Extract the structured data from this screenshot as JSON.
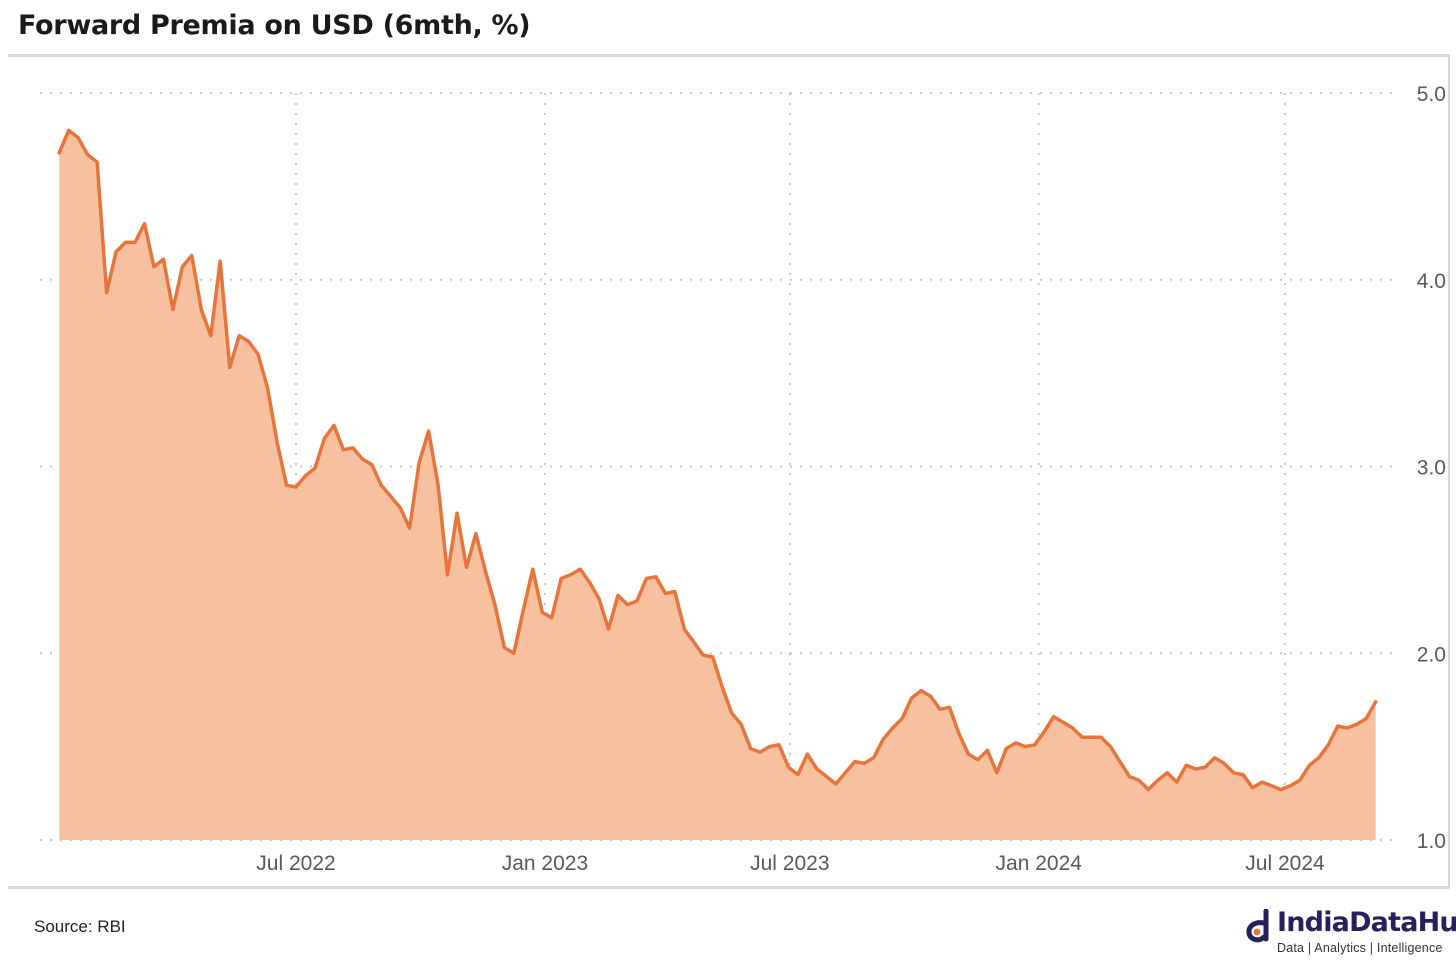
{
  "title": "Forward Premia on USD (6mth, %)",
  "source": "Source: RBI",
  "brand": {
    "name": "IndiaDataHub",
    "tagline": "Data | Analytics | Intelligence"
  },
  "colors": {
    "line": "#e8743b",
    "fill": "#f7c1a0",
    "grid": "#c8c8c8",
    "axis_text": "#595959",
    "brand": "#26215c"
  },
  "chart_data": {
    "type": "area",
    "title": "Forward Premia on USD (6mth, %)",
    "xlabel": "",
    "ylabel": "",
    "ylim": [
      1.0,
      5.0
    ],
    "yticks": [
      1.0,
      2.0,
      3.0,
      4.0,
      5.0
    ],
    "ytick_labels": [
      "1.0",
      "2.0",
      "3.0",
      "4.0",
      "5.0"
    ],
    "y_axis_side": "right",
    "xtick_labels": [
      {
        "label": "Jul 2022",
        "date": "2022-07-01"
      },
      {
        "label": "Jan 2023",
        "date": "2023-01-01"
      },
      {
        "label": "Jul 2023",
        "date": "2023-07-01"
      },
      {
        "label": "Jan 2024",
        "date": "2024-01-01"
      },
      {
        "label": "Jul 2024",
        "date": "2024-07-01"
      }
    ],
    "grid": "dotted",
    "legend": "none",
    "series": [
      {
        "x": [
          "2022-01-07",
          "2022-01-14",
          "2022-01-21",
          "2022-01-28",
          "2022-02-04",
          "2022-02-11",
          "2022-02-18",
          "2022-02-25",
          "2022-03-04",
          "2022-03-11",
          "2022-03-18",
          "2022-03-25",
          "2022-04-01",
          "2022-04-08",
          "2022-04-15",
          "2022-04-22",
          "2022-04-29",
          "2022-05-06",
          "2022-05-13",
          "2022-05-20",
          "2022-05-27",
          "2022-06-03",
          "2022-06-10",
          "2022-06-17",
          "2022-06-24",
          "2022-07-01",
          "2022-07-08",
          "2022-07-15",
          "2022-07-22",
          "2022-07-29",
          "2022-08-05",
          "2022-08-12",
          "2022-08-19",
          "2022-08-26",
          "2022-09-02",
          "2022-09-09",
          "2022-09-16",
          "2022-09-23",
          "2022-09-30",
          "2022-10-07",
          "2022-10-14",
          "2022-10-21",
          "2022-10-28",
          "2022-11-04",
          "2022-11-11",
          "2022-11-18",
          "2022-11-25",
          "2022-12-02",
          "2022-12-09",
          "2022-12-16",
          "2022-12-23",
          "2022-12-30",
          "2023-01-06",
          "2023-01-13",
          "2023-01-20",
          "2023-01-27",
          "2023-02-03",
          "2023-02-10",
          "2023-02-17",
          "2023-02-24",
          "2023-03-03",
          "2023-03-10",
          "2023-03-17",
          "2023-03-24",
          "2023-03-31",
          "2023-04-07",
          "2023-04-14",
          "2023-04-21",
          "2023-04-28",
          "2023-05-05",
          "2023-05-12",
          "2023-05-19",
          "2023-05-26",
          "2023-06-02",
          "2023-06-09",
          "2023-06-16",
          "2023-06-23",
          "2023-06-30",
          "2023-07-07",
          "2023-07-14",
          "2023-07-21",
          "2023-07-28",
          "2023-08-04",
          "2023-08-11",
          "2023-08-18",
          "2023-08-25",
          "2023-09-01",
          "2023-09-08",
          "2023-09-15",
          "2023-09-22",
          "2023-09-29",
          "2023-10-06",
          "2023-10-13",
          "2023-10-20",
          "2023-10-27",
          "2023-11-03",
          "2023-11-10",
          "2023-11-17",
          "2023-11-24",
          "2023-12-01",
          "2023-12-08",
          "2023-12-15",
          "2023-12-22",
          "2023-12-29",
          "2024-01-05",
          "2024-01-12",
          "2024-01-19",
          "2024-01-26",
          "2024-02-02",
          "2024-02-09",
          "2024-02-16",
          "2024-02-23",
          "2024-03-01",
          "2024-03-08",
          "2024-03-15",
          "2024-03-22",
          "2024-03-29",
          "2024-04-05",
          "2024-04-12",
          "2024-04-19",
          "2024-04-26",
          "2024-05-03",
          "2024-05-10",
          "2024-05-17",
          "2024-05-24",
          "2024-05-31",
          "2024-06-07",
          "2024-06-14",
          "2024-06-21",
          "2024-06-28",
          "2024-07-05",
          "2024-07-12",
          "2024-07-19",
          "2024-07-26",
          "2024-08-02",
          "2024-08-09",
          "2024-08-16",
          "2024-08-23",
          "2024-08-30",
          "2024-09-06"
        ],
        "y": [
          4.68,
          4.8,
          4.76,
          4.67,
          4.63,
          3.93,
          4.15,
          4.2,
          4.2,
          4.3,
          4.07,
          4.11,
          3.84,
          4.07,
          4.13,
          3.84,
          3.7,
          4.1,
          3.53,
          3.7,
          3.67,
          3.6,
          3.42,
          3.13,
          2.9,
          2.89,
          2.95,
          2.99,
          3.15,
          3.22,
          3.09,
          3.1,
          3.04,
          3.01,
          2.9,
          2.84,
          2.78,
          2.67,
          3.02,
          3.19,
          2.9,
          2.42,
          2.75,
          2.46,
          2.64,
          2.44,
          2.26,
          2.03,
          2.0,
          2.23,
          2.45,
          2.22,
          2.19,
          2.4,
          2.42,
          2.45,
          2.38,
          2.29,
          2.13,
          2.31,
          2.26,
          2.28,
          2.4,
          2.41,
          2.32,
          2.33,
          2.13,
          2.06,
          1.99,
          1.98,
          1.82,
          1.68,
          1.62,
          1.49,
          1.47,
          1.5,
          1.51,
          1.39,
          1.35,
          1.46,
          1.38,
          1.34,
          1.3,
          1.36,
          1.42,
          1.41,
          1.44,
          1.54,
          1.6,
          1.65,
          1.76,
          1.8,
          1.77,
          1.7,
          1.71,
          1.57,
          1.46,
          1.43,
          1.48,
          1.36,
          1.49,
          1.52,
          1.5,
          1.51,
          1.58,
          1.66,
          1.63,
          1.6,
          1.55,
          1.55,
          1.55,
          1.5,
          1.42,
          1.34,
          1.32,
          1.27,
          1.32,
          1.36,
          1.31,
          1.4,
          1.38,
          1.39,
          1.44,
          1.41,
          1.36,
          1.35,
          1.28,
          1.31,
          1.29,
          1.27,
          1.29,
          1.32,
          1.4,
          1.44,
          1.51,
          1.61,
          1.6,
          1.62,
          1.65,
          1.74
        ]
      }
    ]
  }
}
